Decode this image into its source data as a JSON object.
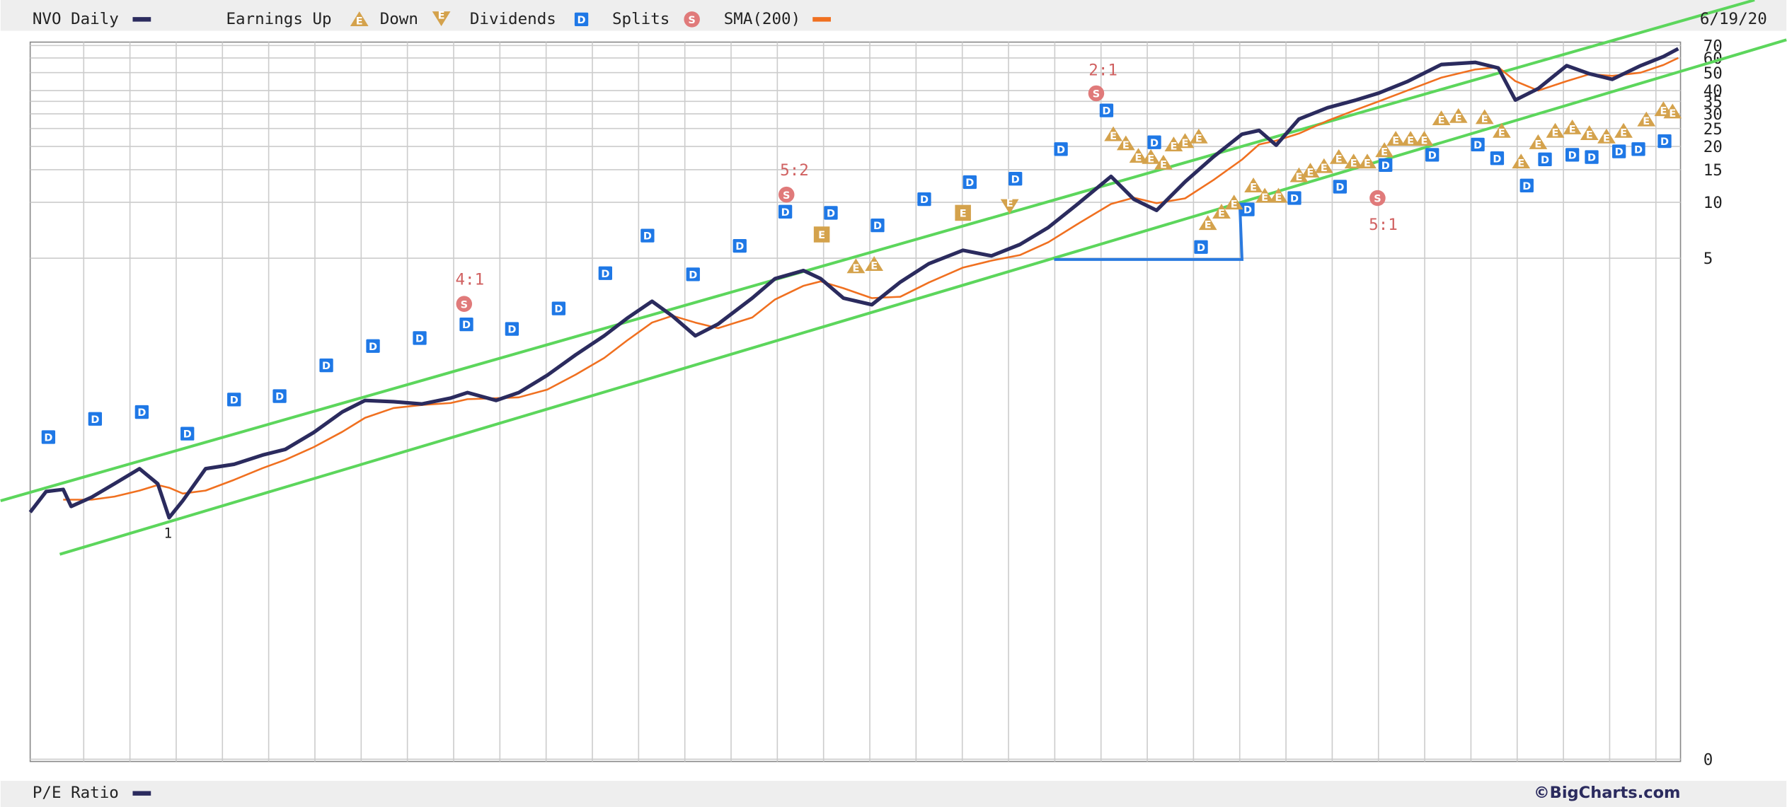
{
  "chart_data": {
    "type": "line",
    "title": "NVO Daily",
    "date_label": "6/19/20",
    "lower_panel": "P/E Ratio",
    "credit": "©BigCharts.com",
    "legend_extra": {
      "earnings_up": "Earnings Up",
      "earnings_down": "Down",
      "dividends": "Dividends",
      "splits": "Splits"
    },
    "icon_letters": {
      "dividend": "D",
      "earnings": "E",
      "split": "S"
    },
    "annotations": [
      "4:1",
      "5:2",
      "2:1",
      "5:1",
      "1"
    ],
    "log_scale": true,
    "grid": true,
    "xlim": [
      0,
      1449
    ],
    "ylim": [
      0.01,
      73
    ],
    "yticks": [
      70,
      60,
      50,
      40,
      35,
      30,
      25,
      20,
      15,
      10,
      5,
      {
        "value": 0.01,
        "label": "0"
      }
    ],
    "x": [
      0,
      14,
      29,
      36,
      54,
      74,
      96,
      112,
      122,
      134,
      154,
      179,
      204,
      224,
      249,
      274,
      294,
      319,
      344,
      369,
      384,
      409,
      429,
      454,
      479,
      504,
      524,
      546,
      564,
      584,
      604,
      634,
      654,
      679,
      694,
      714,
      739,
      764,
      789,
      819,
      844,
      869,
      894,
      919,
      949,
      969,
      989,
      1014,
      1039,
      1064,
      1079,
      1094,
      1114,
      1139,
      1164,
      1184,
      1209,
      1239,
      1269,
      1289,
      1304,
      1324,
      1349,
      1369,
      1389,
      1414,
      1434,
      1447
    ],
    "series": [
      {
        "name": "NVO Daily",
        "color": "#2b2b5e",
        "values": [
          0.214,
          0.277,
          0.284,
          0.23,
          0.258,
          0.305,
          0.367,
          0.305,
          0.2,
          0.247,
          0.367,
          0.388,
          0.435,
          0.467,
          0.576,
          0.743,
          0.857,
          0.844,
          0.82,
          0.881,
          0.945,
          0.857,
          0.945,
          1.17,
          1.51,
          1.91,
          2.37,
          2.93,
          2.44,
          1.91,
          2.21,
          3.05,
          3.88,
          4.29,
          3.88,
          3.05,
          2.81,
          3.72,
          4.67,
          5.52,
          5.15,
          5.93,
          7.33,
          9.72,
          13.8,
          10.4,
          9.06,
          12.9,
          17.6,
          23.3,
          24.4,
          20.3,
          28.1,
          32.3,
          35.6,
          38.8,
          44.7,
          55.3,
          56.8,
          53.0,
          35.6,
          41.0,
          54.5,
          49.3,
          46.0,
          54.5,
          61.0,
          67.3
        ]
      },
      {
        "name": "SMA(200)",
        "color": "#f07020",
        "values": [
          null,
          null,
          0.25,
          0.25,
          0.25,
          0.26,
          0.28,
          0.3,
          0.29,
          0.27,
          0.28,
          0.32,
          0.37,
          0.41,
          0.48,
          0.58,
          0.69,
          0.78,
          0.81,
          0.83,
          0.87,
          0.88,
          0.89,
          0.98,
          1.18,
          1.45,
          1.8,
          2.25,
          2.45,
          2.25,
          2.1,
          2.4,
          3.0,
          3.55,
          3.75,
          3.45,
          3.05,
          3.1,
          3.7,
          4.45,
          4.85,
          5.2,
          6.1,
          7.6,
          9.8,
          10.6,
          9.9,
          10.5,
          13.2,
          17.0,
          20.5,
          21.5,
          23.5,
          27.5,
          31.5,
          35.0,
          40.0,
          47.0,
          52.0,
          53.5,
          45.0,
          40.0,
          45.0,
          49.0,
          48.0,
          50.0,
          55.0,
          60.0
        ]
      }
    ]
  }
}
